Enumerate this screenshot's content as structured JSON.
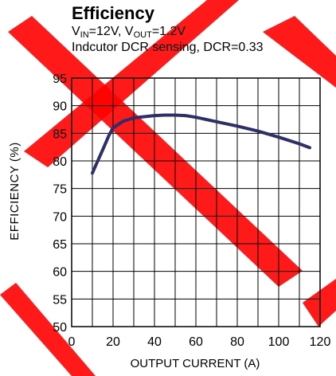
{
  "chart_data": {
    "type": "line",
    "title": "Efficiency",
    "subtitle_line1": {
      "parts": [
        {
          "t": "V"
        },
        {
          "t": "IN",
          "sub": true
        },
        {
          "t": "=12V, V"
        },
        {
          "t": "OUT",
          "sub": true
        },
        {
          "t": "=1.2V"
        }
      ]
    },
    "subtitle_line2": "Indcutor DCR sensing, DCR=0.33",
    "xlabel": "OUTPUT CURRENT (A)",
    "ylabel": "EFFICIENCY (%)",
    "xlim": [
      0,
      120
    ],
    "ylim": [
      50,
      95
    ],
    "x_ticks": [
      0,
      20,
      40,
      60,
      80,
      100,
      120
    ],
    "y_ticks": [
      50,
      55,
      60,
      65,
      70,
      75,
      80,
      85,
      90,
      95
    ],
    "grid": true,
    "series": [
      {
        "color": "#2b2f6b",
        "x": [
          10,
          12,
          15,
          18,
          20,
          25,
          30,
          35,
          40,
          45,
          50,
          55,
          60,
          70,
          80,
          90,
          100,
          110,
          115
        ],
        "y": [
          77.8,
          79.5,
          82,
          84.6,
          86,
          87.2,
          87.8,
          88.0,
          88.2,
          88.3,
          88.3,
          88.2,
          87.9,
          87.1,
          86.3,
          85.4,
          84.3,
          83.1,
          82.4
        ]
      }
    ]
  }
}
